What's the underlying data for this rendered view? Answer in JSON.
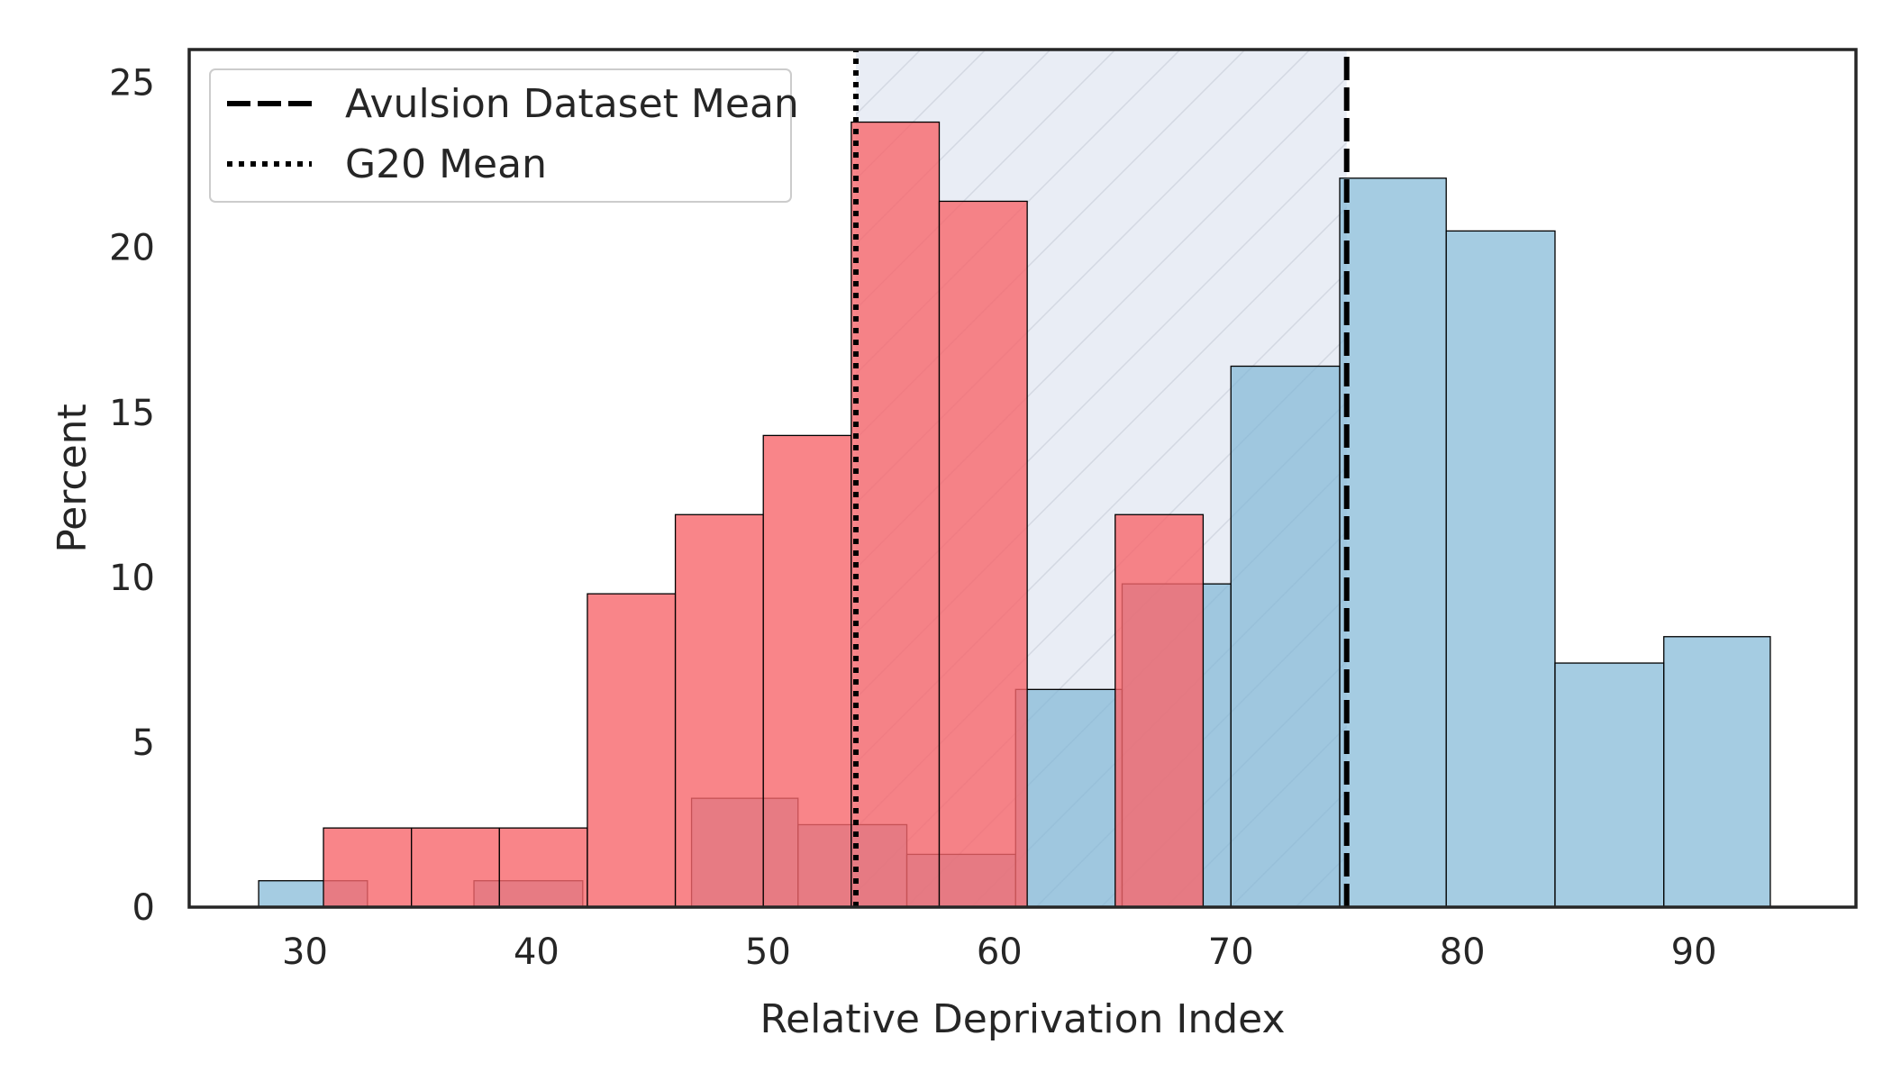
{
  "chart_data": {
    "type": "histogram",
    "xlabel": "Relative Deprivation Index",
    "ylabel": "Percent",
    "xlim": [
      25,
      97
    ],
    "ylim": [
      0,
      26
    ],
    "xticks": [
      30,
      40,
      50,
      60,
      70,
      80,
      90
    ],
    "yticks": [
      0,
      5,
      10,
      15,
      20,
      25
    ],
    "grid": false,
    "legend_position": "upper-left",
    "shaded_region": {
      "x_start": 53.8,
      "x_end": 75.0,
      "hatch": "diagonal",
      "color": "#e9edf5"
    },
    "reference_lines": [
      {
        "label": "Avulsion Dataset Mean",
        "x": 75.0,
        "style": "dashed",
        "color": "#000000"
      },
      {
        "label": "G20 Mean",
        "x": 53.8,
        "style": "dotted",
        "color": "#000000"
      }
    ],
    "series": [
      {
        "color": "#f8676b",
        "opacity": 0.8,
        "bins": [
          {
            "start": 30.8,
            "end": 34.6,
            "value": 2.4
          },
          {
            "start": 34.6,
            "end": 38.4,
            "value": 2.4
          },
          {
            "start": 38.4,
            "end": 42.2,
            "value": 2.4
          },
          {
            "start": 42.2,
            "end": 46.0,
            "value": 9.5
          },
          {
            "start": 46.0,
            "end": 49.8,
            "value": 11.9
          },
          {
            "start": 49.8,
            "end": 53.6,
            "value": 14.3
          },
          {
            "start": 53.6,
            "end": 57.4,
            "value": 23.8
          },
          {
            "start": 57.4,
            "end": 61.2,
            "value": 21.4
          },
          {
            "start": 61.2,
            "end": 65.0,
            "value": 0
          },
          {
            "start": 65.0,
            "end": 68.8,
            "value": 11.9
          }
        ]
      },
      {
        "color": "#7fb6d6",
        "opacity": 0.7,
        "bins": [
          {
            "start": 28.0,
            "end": 32.7,
            "value": 0.8
          },
          {
            "start": 32.7,
            "end": 37.3,
            "value": 0
          },
          {
            "start": 37.3,
            "end": 42.0,
            "value": 0.8
          },
          {
            "start": 42.0,
            "end": 46.7,
            "value": 0
          },
          {
            "start": 46.7,
            "end": 51.3,
            "value": 3.3
          },
          {
            "start": 51.3,
            "end": 56.0,
            "value": 2.5
          },
          {
            "start": 56.0,
            "end": 60.7,
            "value": 1.6
          },
          {
            "start": 60.7,
            "end": 65.3,
            "value": 6.6
          },
          {
            "start": 65.3,
            "end": 70.0,
            "value": 9.8
          },
          {
            "start": 70.0,
            "end": 74.7,
            "value": 16.4
          },
          {
            "start": 74.7,
            "end": 79.3,
            "value": 22.1
          },
          {
            "start": 79.3,
            "end": 84.0,
            "value": 20.5
          },
          {
            "start": 84.0,
            "end": 88.7,
            "value": 7.4
          },
          {
            "start": 88.7,
            "end": 93.3,
            "value": 8.2
          }
        ]
      }
    ]
  }
}
